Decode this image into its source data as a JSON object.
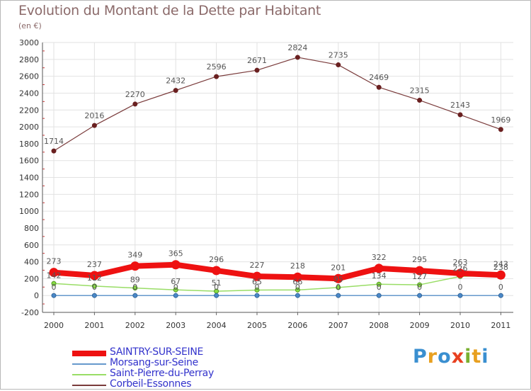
{
  "title": "Evolution du Montant de la Dette par Habitant",
  "subtitle": "(en €)",
  "logo_text": "Proxiti",
  "chart_data": {
    "type": "line",
    "title": "Evolution du Montant de la Dette par Habitant",
    "ylabel": "(en €)",
    "xlabel": "",
    "categories": [
      "2000",
      "2001",
      "2002",
      "2003",
      "2004",
      "2005",
      "2006",
      "2007",
      "2008",
      "2009",
      "2010",
      "2011"
    ],
    "ylim": [
      -200,
      3000
    ],
    "yticks": [
      "-200",
      "0",
      "200",
      "400",
      "600",
      "800",
      "1000",
      "1200",
      "1400",
      "1600",
      "1800",
      "2000",
      "2200",
      "2400",
      "2600",
      "2800",
      "3000"
    ],
    "series": [
      {
        "name": "SAINTRY-SUR-SEINE",
        "color": "#ee1111",
        "values": [
          273,
          237,
          349,
          365,
          296,
          227,
          218,
          201,
          322,
          295,
          263,
          243
        ]
      },
      {
        "name": "Morsang-sur-Seine",
        "color": "#6699cc",
        "values": [
          0,
          0,
          0,
          0,
          0,
          0,
          0,
          0,
          0,
          0,
          0,
          0
        ]
      },
      {
        "name": "Saint-Pierre-du-Perray",
        "color": "#99dd66",
        "values": [
          142,
          112,
          89,
          67,
          51,
          65,
          66,
          95,
          134,
          127,
          226,
          238
        ]
      },
      {
        "name": "Corbeil-Essonnes",
        "color": "#7a3b3b",
        "values": [
          1714,
          2016,
          2270,
          2432,
          2596,
          2671,
          2824,
          2735,
          2469,
          2315,
          2143,
          1969
        ]
      }
    ],
    "data_labels": {
      "SAINTRY-SUR-SEINE": [
        "273",
        "237",
        "349",
        "365",
        "296",
        "227",
        "218",
        "201",
        "322",
        "295",
        "263",
        "243"
      ],
      "Morsang-sur-Seine": [
        "0",
        "0",
        "0",
        "0",
        "0",
        "0",
        "0",
        "0",
        "0",
        "0",
        "0",
        "0"
      ],
      "Saint-Pierre-du-Perray": [
        "142",
        "112",
        "89",
        "67",
        "51",
        "65",
        "66",
        "95",
        "134",
        "127",
        "226",
        "238"
      ],
      "Corbeil-Essonnes": [
        "1714",
        "2016",
        "2270",
        "2432",
        "2596",
        "2671",
        "2824",
        "2735",
        "2469",
        "2315",
        "2143",
        "1969"
      ]
    },
    "legend_position": "bottom-left",
    "grid": true
  }
}
